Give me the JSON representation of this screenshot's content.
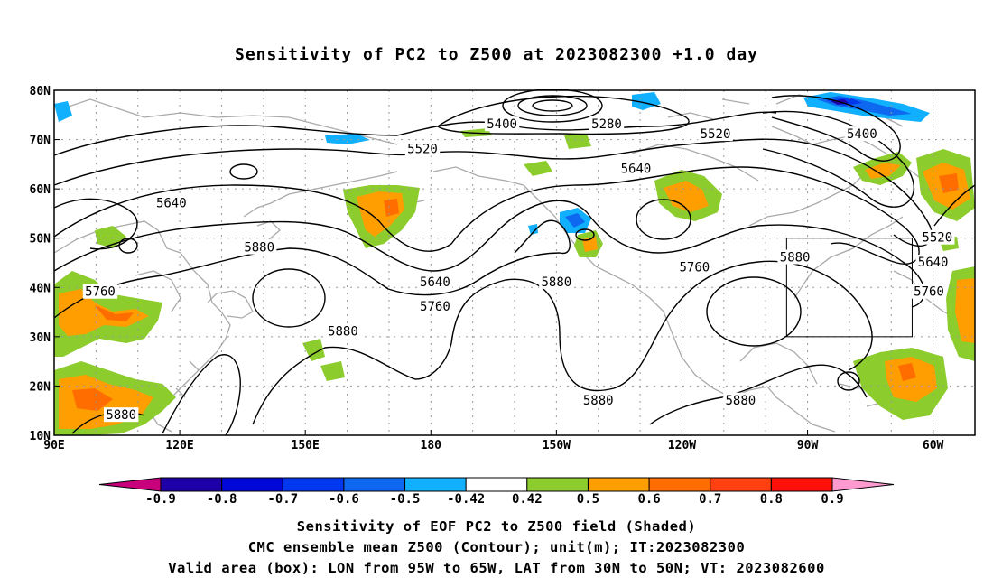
{
  "title": "Sensitivity of PC2 to Z500 at 2023082300 +1.0 day",
  "map": {
    "lat_labels": [
      "80N",
      "70N",
      "60N",
      "50N",
      "40N",
      "30N",
      "20N",
      "10N"
    ],
    "lon_labels": [
      "90E",
      "120E",
      "150E",
      "180",
      "150W",
      "120W",
      "90W",
      "60W"
    ],
    "contour_labels": [
      {
        "text": "5400",
        "lon": -163,
        "lat": 73
      },
      {
        "text": "5280",
        "lon": -138,
        "lat": 73
      },
      {
        "text": "5520",
        "lon": 178,
        "lat": 68
      },
      {
        "text": "5520",
        "lon": -112,
        "lat": 71
      },
      {
        "text": "5400",
        "lon": -77,
        "lat": 71
      },
      {
        "text": "5640",
        "lon": -131,
        "lat": 64
      },
      {
        "text": "5640",
        "lon": 118,
        "lat": 57
      },
      {
        "text": "5880",
        "lon": 139,
        "lat": 48
      },
      {
        "text": "5640",
        "lon": -179,
        "lat": 41
      },
      {
        "text": "5760",
        "lon": -179,
        "lat": 36
      },
      {
        "text": "5880",
        "lon": -150,
        "lat": 41
      },
      {
        "text": "5760",
        "lon": -117,
        "lat": 44
      },
      {
        "text": "5880",
        "lon": -93,
        "lat": 46
      },
      {
        "text": "5520",
        "lon": -59,
        "lat": 50
      },
      {
        "text": "5640",
        "lon": -60,
        "lat": 45
      },
      {
        "text": "5760",
        "lon": -61,
        "lat": 39
      },
      {
        "text": "5760",
        "lon": 101,
        "lat": 39
      },
      {
        "text": "5880",
        "lon": 159,
        "lat": 31
      },
      {
        "text": "5880",
        "lon": -140,
        "lat": 17
      },
      {
        "text": "5880",
        "lon": -106,
        "lat": 17
      },
      {
        "text": "5880",
        "lon": 106,
        "lat": 14
      }
    ],
    "valid_box": {
      "lon_min": -95,
      "lon_max": -65,
      "lat_min": 30,
      "lat_max": 50
    }
  },
  "colorbar": {
    "labels": [
      "-0.9",
      "-0.8",
      "-0.7",
      "-0.6",
      "-0.5",
      "-0.42",
      "0.42",
      "0.5",
      "0.6",
      "0.7",
      "0.8",
      "0.9"
    ],
    "colors": [
      "#1e00a8",
      "#0008d8",
      "#0038f0",
      "#0f68f0",
      "#10b0ff",
      "#ffffff",
      "#8ccc2c",
      "#ff9e00",
      "#ff6c00",
      "#ff4010",
      "#ff1008"
    ],
    "low_end_color": "#c8007c",
    "high_end_color": "#ff9ad0"
  },
  "footer": {
    "line1": "Sensitivity of EOF PC2 to Z500 field (Shaded)",
    "line2": "CMC ensemble mean Z500 (Contour); unit(m); IT:2023082300",
    "line3": "Valid area (box): LON from 95W to 65W, LAT from 30N to 50N; VT: 2023082600"
  }
}
